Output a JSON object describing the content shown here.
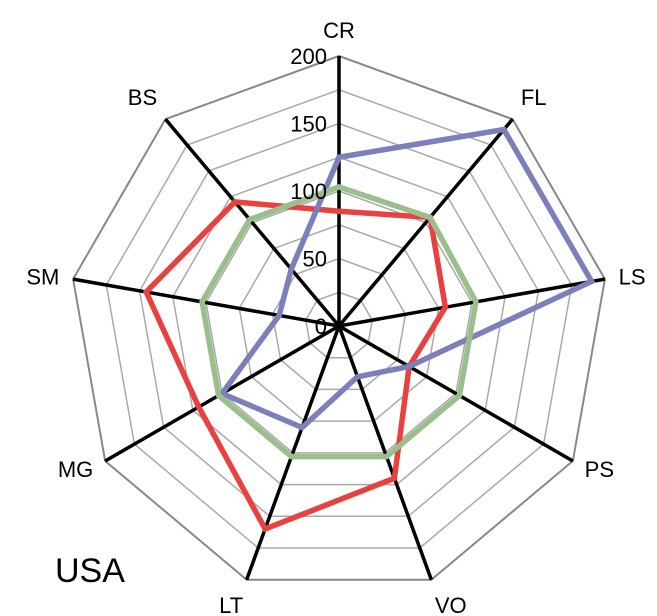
{
  "chart_data": {
    "type": "radar",
    "caption": "USA",
    "axes": [
      "CR",
      "FL",
      "LS",
      "PS",
      "VO",
      "LT",
      "MG",
      "SM",
      "BS"
    ],
    "rlim": [
      0,
      200
    ],
    "ticks": [
      "0",
      "50",
      "100",
      "150",
      "200"
    ],
    "grid": true,
    "series": [
      {
        "color": "#e8413f",
        "values": [
          85,
          105,
          80,
          60,
          120,
          160,
          120,
          145,
          120
        ]
      },
      {
        "color": "#7c7fba",
        "values": [
          125,
          190,
          190,
          60,
          40,
          80,
          100,
          45,
          55
        ]
      },
      {
        "color": "#9bbf8c",
        "values": [
          103,
          105,
          103,
          103,
          103,
          103,
          103,
          103,
          103
        ]
      }
    ]
  }
}
